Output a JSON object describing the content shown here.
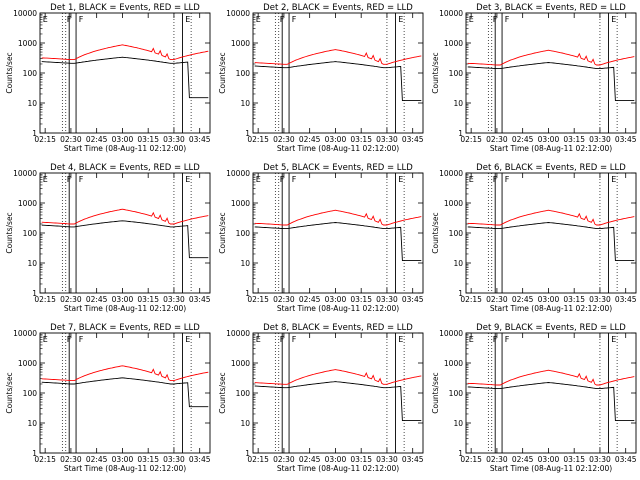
{
  "chart_data": [
    {
      "panel": 1,
      "title": "Det 1, BLACK = Events, RED = LLD",
      "type": "line",
      "flag_markers": [
        "E",
        "F",
        "F",
        "E"
      ],
      "events_base": 210,
      "lld_base": 280,
      "events_end": 15,
      "xtick_labels": [
        "02:15",
        "02:30",
        "02:45",
        "03:00",
        "03:15",
        "03:30",
        "03:45"
      ],
      "xlabel": "Start Time (08-Aug-11 02:12:00)",
      "ylabel": "Counts/sec",
      "ytick_labels": [
        "1",
        "10",
        "100",
        "1000",
        "10000"
      ],
      "ylim": [
        1,
        10000
      ]
    },
    {
      "panel": 2,
      "title": "Det 2, BLACK = Events, RED = LLD",
      "type": "line",
      "flag_markers": [
        "E",
        "F",
        "F",
        "E"
      ],
      "events_base": 150,
      "lld_base": 195,
      "events_end": 12,
      "xtick_labels": [
        "02:15",
        "02:30",
        "02:45",
        "03:00",
        "03:15",
        "03:30",
        "03:45"
      ],
      "xlabel": "Start Time (08-Aug-11 02:12:00)",
      "ylabel": "Counts/sec",
      "ytick_labels": [
        "1",
        "10",
        "100",
        "1000",
        "10000"
      ],
      "ylim": [
        1,
        10000
      ]
    },
    {
      "panel": 3,
      "title": "Det 3, BLACK = Events, RED = LLD",
      "type": "line",
      "flag_markers": [
        "E",
        "F",
        "F",
        "E"
      ],
      "events_base": 140,
      "lld_base": 185,
      "events_end": 12,
      "xtick_labels": [
        "02:15",
        "02:30",
        "02:45",
        "03:00",
        "03:15",
        "03:30",
        "03:45"
      ],
      "xlabel": "Start Time (08-Aug-11 02:12:00)",
      "ylabel": "Counts/sec",
      "ytick_labels": [
        "1",
        "10",
        "100",
        "1000",
        "10000"
      ],
      "ylim": [
        1,
        10000
      ]
    },
    {
      "panel": 4,
      "title": "Det 4, BLACK = Events, RED = LLD",
      "type": "line",
      "flag_markers": [
        "E",
        "F",
        "F",
        "E"
      ],
      "events_base": 160,
      "lld_base": 200,
      "events_end": 15,
      "xtick_labels": [
        "02:15",
        "02:30",
        "02:45",
        "03:00",
        "03:15",
        "03:30",
        "03:45"
      ],
      "xlabel": "Start Time (08-Aug-11 02:12:00)",
      "ylabel": "Counts/sec",
      "ytick_labels": [
        "1",
        "10",
        "100",
        "1000",
        "10000"
      ],
      "ylim": [
        1,
        10000
      ]
    },
    {
      "panel": 5,
      "title": "Det 5, BLACK = Events, RED = LLD",
      "type": "line",
      "flag_markers": [
        "E",
        "F",
        "F",
        "E"
      ],
      "events_base": 140,
      "lld_base": 185,
      "events_end": 12,
      "xtick_labels": [
        "02:15",
        "02:30",
        "02:45",
        "03:00",
        "03:15",
        "03:30",
        "03:45"
      ],
      "xlabel": "Start Time (08-Aug-11 02:12:00)",
      "ylabel": "Counts/sec",
      "ytick_labels": [
        "1",
        "10",
        "100",
        "1000",
        "10000"
      ],
      "ylim": [
        1,
        10000
      ]
    },
    {
      "panel": 6,
      "title": "Det 6, BLACK = Events, RED = LLD",
      "type": "line",
      "flag_markers": [
        "E",
        "F",
        "F",
        "E"
      ],
      "events_base": 140,
      "lld_base": 185,
      "events_end": 12,
      "xtick_labels": [
        "02:15",
        "02:30",
        "02:45",
        "03:00",
        "03:15",
        "03:30",
        "03:45"
      ],
      "xlabel": "Start Time (08-Aug-11 02:12:00)",
      "ylabel": "Counts/sec",
      "ytick_labels": [
        "1",
        "10",
        "100",
        "1000",
        "10000"
      ],
      "ylim": [
        1,
        10000
      ]
    },
    {
      "panel": 7,
      "title": "Det 7, BLACK = Events, RED = LLD",
      "type": "line",
      "flag_markers": [
        "E",
        "F",
        "F",
        "E"
      ],
      "events_base": 200,
      "lld_base": 260,
      "events_end": 35,
      "xtick_labels": [
        "02:15",
        "02:30",
        "02:45",
        "03:00",
        "03:15",
        "03:30",
        "03:45"
      ],
      "xlabel": "Start Time (08-Aug-11 02:12:00)",
      "ylabel": "Counts/sec",
      "ytick_labels": [
        "1",
        "10",
        "100",
        "1000",
        "10000"
      ],
      "ylim": [
        1,
        10000
      ]
    },
    {
      "panel": 8,
      "title": "Det 8, BLACK = Events, RED = LLD",
      "type": "line",
      "flag_markers": [
        "E",
        "F",
        "F",
        "E"
      ],
      "events_base": 150,
      "lld_base": 195,
      "events_end": 12,
      "xtick_labels": [
        "02:15",
        "02:30",
        "02:45",
        "03:00",
        "03:15",
        "03:30",
        "03:45"
      ],
      "xlabel": "Start Time (08-Aug-11 02:12:00)",
      "ylabel": "Counts/sec",
      "ytick_labels": [
        "1",
        "10",
        "100",
        "1000",
        "10000"
      ],
      "ylim": [
        1,
        10000
      ]
    },
    {
      "panel": 9,
      "title": "Det 9, BLACK = Events, RED = LLD",
      "type": "line",
      "flag_markers": [
        "E",
        "F",
        "F",
        "E"
      ],
      "events_base": 140,
      "lld_base": 185,
      "events_end": 12,
      "xtick_labels": [
        "02:15",
        "02:30",
        "02:45",
        "03:00",
        "03:15",
        "03:30",
        "03:45"
      ],
      "xlabel": "Start Time (08-Aug-11 02:12:00)",
      "ylabel": "Counts/sec",
      "ytick_labels": [
        "1",
        "10",
        "100",
        "1000",
        "10000"
      ],
      "ylim": [
        1,
        10000
      ]
    }
  ],
  "colors": {
    "events": "#000000",
    "lld": "#ff0000",
    "axes": "#000000",
    "background": "#ffffff"
  }
}
